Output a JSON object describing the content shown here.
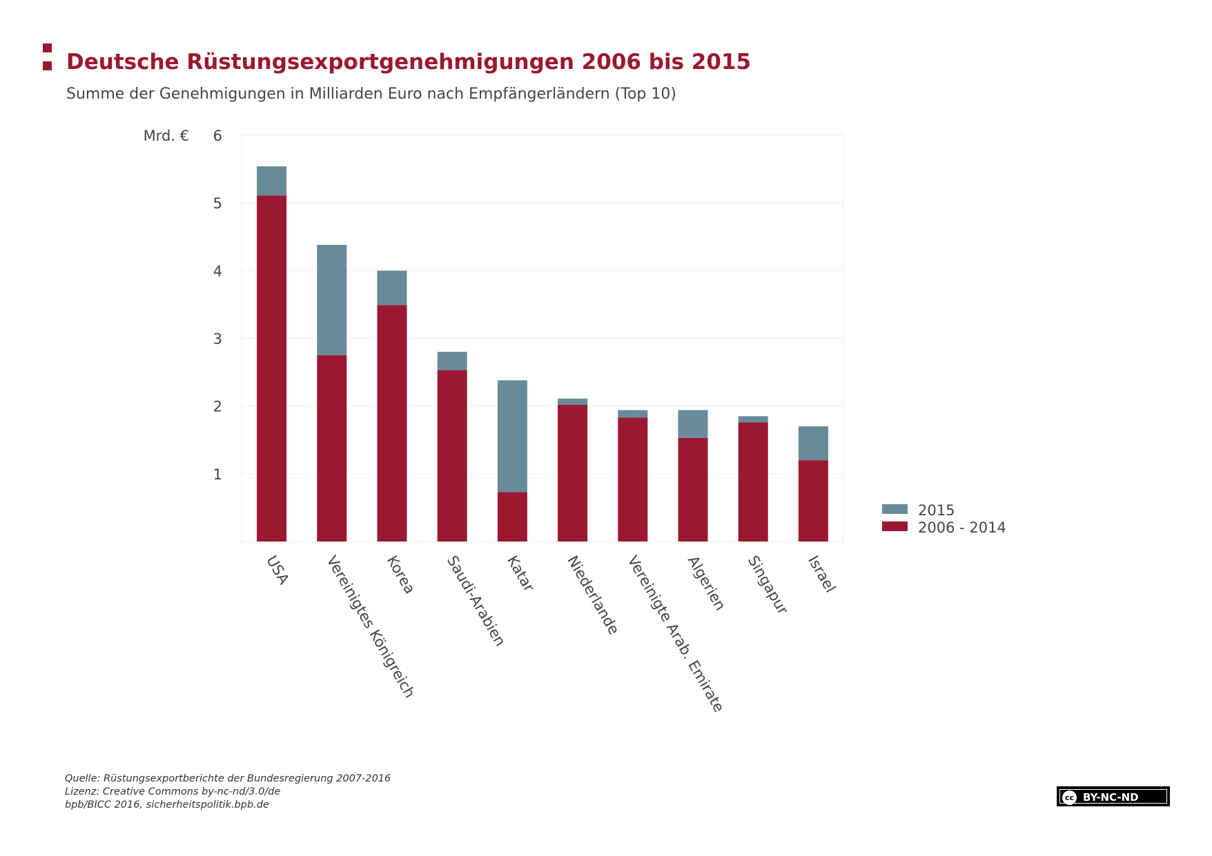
{
  "header": {
    "title": "Deutsche Rüstungsexportgenehmigungen 2006 bis 2015",
    "subtitle": "Summe der Genehmigungen in Milliarden Euro nach Empfängerländern (Top 10)"
  },
  "colors": {
    "accent": "#9b1830",
    "series_2006_2014": "#9b1830",
    "series_2015": "#688b99",
    "grid": "#eeeeee"
  },
  "chart_data": {
    "type": "bar",
    "stacked": true,
    "title": "Deutsche Rüstungsexportgenehmigungen 2006 bis 2015",
    "ylabel": "Mrd. €",
    "xlabel": "",
    "ylim": [
      0,
      6
    ],
    "yticks": [
      1,
      2,
      3,
      4,
      5,
      6
    ],
    "grid": true,
    "legend_position": "bottom-right",
    "categories": [
      "USA",
      "Vereinigtes Königreich",
      "Korea",
      "Saudi-Arabien",
      "Katar",
      "Niederlande",
      "Vereinigte Arab. Emirate",
      "Algerien",
      "Singapur",
      "Israel"
    ],
    "series": [
      {
        "name": "2006 - 2014",
        "color": "#9b1830",
        "values": [
          5.11,
          2.75,
          3.49,
          2.53,
          0.73,
          2.02,
          1.83,
          1.53,
          1.76,
          1.2
        ]
      },
      {
        "name": "2015",
        "color": "#688b99",
        "values": [
          0.43,
          1.63,
          0.51,
          0.27,
          1.65,
          0.09,
          0.11,
          0.41,
          0.09,
          0.5
        ]
      }
    ],
    "legend": [
      "2015",
      "2006 - 2014"
    ]
  },
  "footer": {
    "source": "Quelle: Rüstungsexportberichte der Bundesregierung 2007-2016",
    "license": "Lizenz: Creative Commons by-nc-nd/3.0/de",
    "credit": "bpb/BICC 2016, sicherheitspolitik.bpb.de"
  },
  "badge": {
    "icon": "cc-icon",
    "icon_text": "cc",
    "label": "BY-NC-ND"
  }
}
